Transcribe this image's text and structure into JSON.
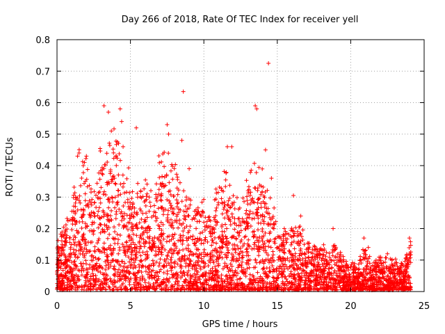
{
  "chart_data": {
    "type": "scatter",
    "title": "Day 266 of 2018, Rate Of TEC Index for receiver yell",
    "xlabel": "GPS time / hours",
    "ylabel": "ROTI / TECUs",
    "xlim": [
      0,
      25
    ],
    "ylim": [
      0,
      0.8
    ],
    "xticks": [
      0,
      5,
      10,
      15,
      20,
      25
    ],
    "xtick_labels": [
      "0",
      "5",
      "10",
      "15",
      "20",
      "25"
    ],
    "yticks": [
      0,
      0.1,
      0.2,
      0.3,
      0.4,
      0.5,
      0.6,
      0.7,
      0.8
    ],
    "ytick_labels": [
      "0",
      "0.1",
      "0.2",
      "0.3",
      "0.4",
      "0.5",
      "0.6",
      "0.7",
      "0.8"
    ],
    "grid": true,
    "marker": "+",
    "color": "#ff0000",
    "envelope": {
      "description": "approximate upper envelope of the dense point cloud (hour, ROTI)",
      "x": [
        0.0,
        0.5,
        1.0,
        1.5,
        2.0,
        2.5,
        3.0,
        3.5,
        4.0,
        4.5,
        5.0,
        5.5,
        6.0,
        6.5,
        7.0,
        7.5,
        8.0,
        8.5,
        9.0,
        9.5,
        10.0,
        10.5,
        11.0,
        11.5,
        12.0,
        12.5,
        13.0,
        13.5,
        14.0,
        14.5,
        15.0,
        15.5,
        16.0,
        16.5,
        17.0,
        17.5,
        18.0,
        18.5,
        19.0,
        19.5,
        20.0,
        20.5,
        21.0,
        21.5,
        22.0,
        22.5,
        23.0,
        23.5,
        24.0
      ],
      "y": [
        0.15,
        0.22,
        0.3,
        0.42,
        0.4,
        0.33,
        0.45,
        0.48,
        0.5,
        0.44,
        0.35,
        0.32,
        0.36,
        0.3,
        0.42,
        0.47,
        0.4,
        0.35,
        0.29,
        0.26,
        0.3,
        0.26,
        0.34,
        0.41,
        0.33,
        0.3,
        0.38,
        0.4,
        0.38,
        0.37,
        0.2,
        0.18,
        0.22,
        0.21,
        0.18,
        0.16,
        0.15,
        0.13,
        0.18,
        0.1,
        0.09,
        0.08,
        0.16,
        0.08,
        0.12,
        0.1,
        0.1,
        0.09,
        0.15
      ]
    },
    "highlights": [
      {
        "x": 0.3,
        "y": 0.13
      },
      {
        "x": 1.4,
        "y": 0.43
      },
      {
        "x": 1.5,
        "y": 0.44
      },
      {
        "x": 2.0,
        "y": 0.43
      },
      {
        "x": 3.2,
        "y": 0.59
      },
      {
        "x": 3.5,
        "y": 0.57
      },
      {
        "x": 3.7,
        "y": 0.51
      },
      {
        "x": 4.3,
        "y": 0.58
      },
      {
        "x": 4.4,
        "y": 0.54
      },
      {
        "x": 4.5,
        "y": 0.46
      },
      {
        "x": 5.4,
        "y": 0.52
      },
      {
        "x": 7.5,
        "y": 0.53
      },
      {
        "x": 7.6,
        "y": 0.5
      },
      {
        "x": 8.6,
        "y": 0.635
      },
      {
        "x": 8.5,
        "y": 0.48
      },
      {
        "x": 9.0,
        "y": 0.39
      },
      {
        "x": 11.6,
        "y": 0.46
      },
      {
        "x": 11.9,
        "y": 0.46
      },
      {
        "x": 13.5,
        "y": 0.59
      },
      {
        "x": 13.6,
        "y": 0.58
      },
      {
        "x": 14.2,
        "y": 0.45
      },
      {
        "x": 14.4,
        "y": 0.725
      },
      {
        "x": 14.6,
        "y": 0.36
      },
      {
        "x": 16.1,
        "y": 0.305
      },
      {
        "x": 16.6,
        "y": 0.24
      },
      {
        "x": 18.8,
        "y": 0.2
      },
      {
        "x": 20.9,
        "y": 0.17
      },
      {
        "x": 21.2,
        "y": 0.14
      },
      {
        "x": 22.5,
        "y": 0.12
      },
      {
        "x": 24.0,
        "y": 0.17
      }
    ]
  }
}
